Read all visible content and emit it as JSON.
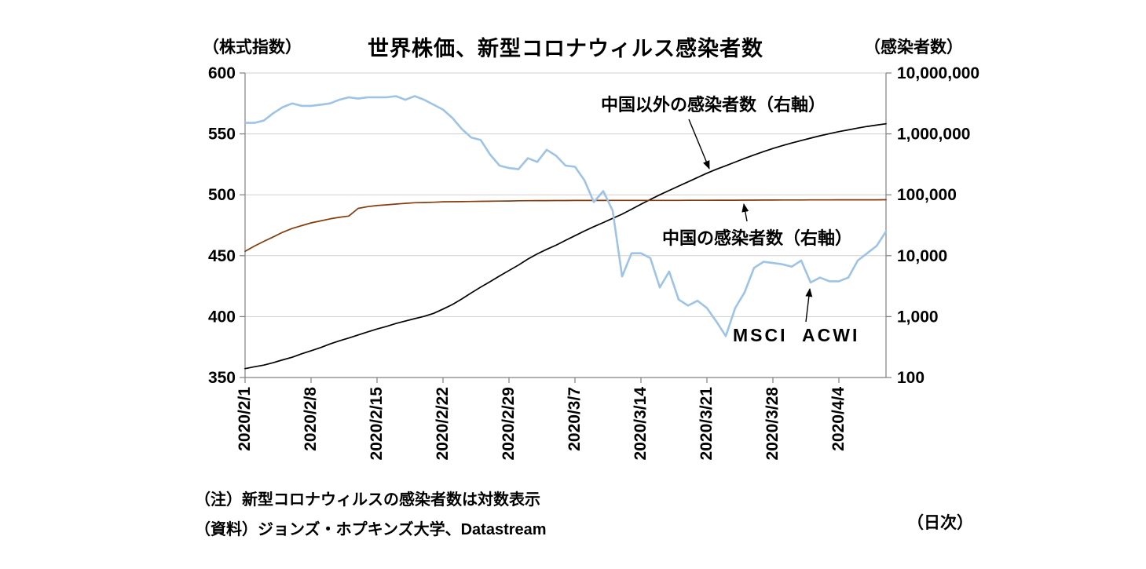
{
  "title": "世界株価、新型コロナウィルス感染者数",
  "axis_left_unit": "（株式指数）",
  "axis_right_unit": "（感染者数）",
  "frequency_label": "（日次）",
  "notes": [
    "（注）新型コロナウィルスの感染者数は対数表示",
    "（資料）ジョンズ・ホプキンズ大学、Datastream"
  ],
  "annotations": {
    "outside_china": "中国以外の感染者数（右軸）",
    "china": "中国の感染者数（右軸）",
    "msci": "MSCI ACWI"
  },
  "colors": {
    "msci": "#9dc3e6",
    "outside_china": "#000000",
    "china": "#843c0c",
    "grid": "#d0d0d0",
    "axis": "#808080",
    "text": "#000000"
  },
  "chart_data": {
    "type": "line",
    "title": "世界株価、新型コロナウィルス感染者数",
    "grid": true,
    "legend": "inline-annotations",
    "x": [
      "2020/2/1",
      "2020/2/2",
      "2020/2/3",
      "2020/2/4",
      "2020/2/5",
      "2020/2/6",
      "2020/2/7",
      "2020/2/8",
      "2020/2/9",
      "2020/2/10",
      "2020/2/11",
      "2020/2/12",
      "2020/2/13",
      "2020/2/14",
      "2020/2/15",
      "2020/2/16",
      "2020/2/17",
      "2020/2/18",
      "2020/2/19",
      "2020/2/20",
      "2020/2/21",
      "2020/2/22",
      "2020/2/23",
      "2020/2/24",
      "2020/2/25",
      "2020/2/26",
      "2020/2/27",
      "2020/2/28",
      "2020/2/29",
      "2020/3/1",
      "2020/3/2",
      "2020/3/3",
      "2020/3/4",
      "2020/3/5",
      "2020/3/6",
      "2020/3/7",
      "2020/3/8",
      "2020/3/9",
      "2020/3/10",
      "2020/3/11",
      "2020/3/12",
      "2020/3/13",
      "2020/3/14",
      "2020/3/15",
      "2020/3/16",
      "2020/3/17",
      "2020/3/18",
      "2020/3/19",
      "2020/3/20",
      "2020/3/21",
      "2020/3/22",
      "2020/3/23",
      "2020/3/24",
      "2020/3/25",
      "2020/3/26",
      "2020/3/27",
      "2020/3/28",
      "2020/3/29",
      "2020/3/30",
      "2020/3/31",
      "2020/4/1",
      "2020/4/2",
      "2020/4/3",
      "2020/4/4",
      "2020/4/5",
      "2020/4/6",
      "2020/4/7",
      "2020/4/8",
      "2020/4/9"
    ],
    "x_tick_indices": [
      0,
      7,
      14,
      21,
      28,
      35,
      42,
      49,
      56,
      63
    ],
    "x_tick_labels": [
      "2020/2/1",
      "2020/2/8",
      "2020/2/15",
      "2020/2/22",
      "2020/2/29",
      "2020/3/7",
      "2020/3/14",
      "2020/3/21",
      "2020/3/28",
      "2020/4/4"
    ],
    "left_axis": {
      "label": "（株式指数）",
      "scale": "linear",
      "range": [
        350,
        600
      ],
      "ticks": [
        600,
        550,
        500,
        450,
        400,
        350
      ]
    },
    "right_axis": {
      "label": "（感染者数）",
      "scale": "log",
      "range": [
        100,
        10000000
      ],
      "ticks": [
        "10,000,000",
        "1,000,000",
        "100,000",
        "10,000",
        "1,000",
        "100"
      ],
      "tick_values": [
        10000000,
        1000000,
        100000,
        10000,
        1000,
        100
      ]
    },
    "series": [
      {
        "name": "中国以外の感染者数（右軸）",
        "axis": "right",
        "color": "#000000",
        "values": [
          140,
          150,
          160,
          175,
          195,
          215,
          245,
          275,
          310,
          355,
          400,
          445,
          500,
          560,
          625,
          690,
          770,
          845,
          925,
          1010,
          1130,
          1330,
          1580,
          1950,
          2450,
          3050,
          3750,
          4650,
          5700,
          7000,
          8800,
          10700,
          12700,
          14900,
          17900,
          21300,
          25400,
          30000,
          35000,
          41000,
          48000,
          58000,
          70000,
          84000,
          100000,
          118000,
          139000,
          163000,
          192000,
          226000,
          262000,
          300000,
          345000,
          396000,
          452000,
          512000,
          575000,
          640000,
          708000,
          778000,
          852000,
          930000,
          1010000,
          1090000,
          1165000,
          1245000,
          1325000,
          1395000,
          1465000
        ]
      },
      {
        "name": "中国の感染者数（右軸）",
        "axis": "right",
        "color": "#843c0c",
        "values": [
          11800,
          14400,
          17200,
          20400,
          24300,
          28000,
          31200,
          34600,
          37200,
          40200,
          42700,
          44700,
          59800,
          63900,
          66500,
          68500,
          70500,
          72400,
          74200,
          74600,
          75500,
          76900,
          77000,
          77200,
          77700,
          78100,
          78500,
          78800,
          79200,
          79800,
          80000,
          80200,
          80400,
          80500,
          80600,
          80700,
          80700,
          80800,
          80800,
          80900,
          80900,
          80900,
          81000,
          81000,
          81000,
          81100,
          81100,
          81200,
          81300,
          81300,
          81400,
          81500,
          81600,
          81700,
          81800,
          81900,
          82000,
          82100,
          82200,
          82300,
          82400,
          82500,
          82500,
          82600,
          82600,
          82700,
          82700,
          82800,
          82900
        ]
      },
      {
        "name": "MSCI ACWI",
        "axis": "left",
        "color": "#9dc3e6",
        "values": [
          559,
          559,
          561,
          567,
          572,
          575,
          573,
          573,
          574,
          575,
          578,
          580,
          579,
          580,
          580,
          580,
          581,
          578,
          581,
          578,
          574,
          570,
          563,
          554,
          547,
          545,
          533,
          524,
          522,
          521,
          530,
          527,
          537,
          532,
          524,
          523,
          512,
          494,
          503,
          487,
          433,
          452,
          452,
          448,
          424,
          437,
          414,
          409,
          413,
          407,
          396,
          384,
          407,
          420,
          440,
          445,
          444,
          443,
          441,
          446,
          428,
          432,
          429,
          429,
          432,
          446,
          452,
          458,
          470
        ]
      }
    ]
  }
}
